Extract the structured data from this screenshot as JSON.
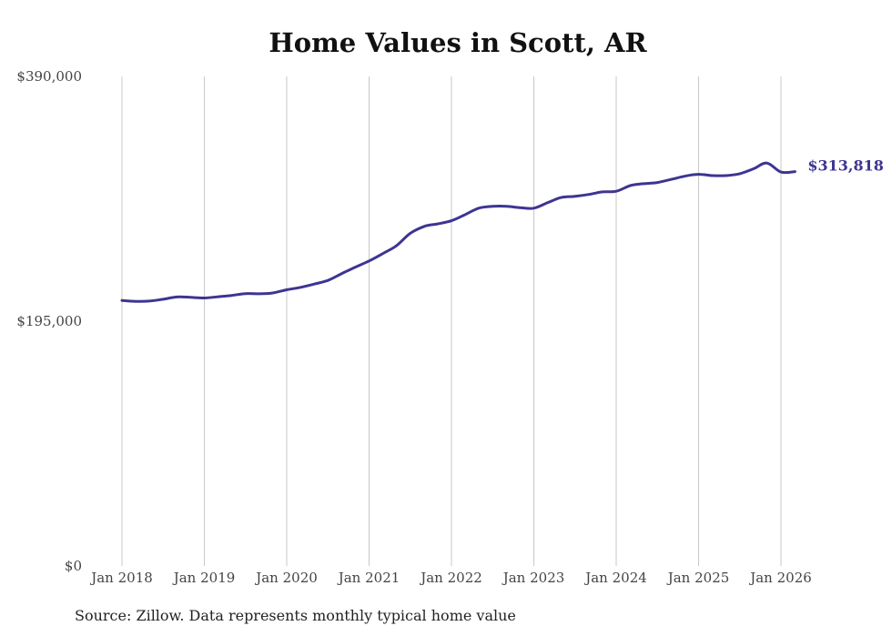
{
  "chart_data": {
    "type": "line",
    "title": "Home Values in Scott, AR",
    "xlabel": "",
    "ylabel": "",
    "x_tick_labels": [
      "Jan 2018",
      "Jan 2019",
      "Jan 2020",
      "Jan 2021",
      "Jan 2022",
      "Jan 2023",
      "Jan 2024",
      "Jan 2025",
      "Jan 2026"
    ],
    "y_tick_labels": [
      "$390,000",
      "$195,000",
      "$0"
    ],
    "y_ticks": [
      390000,
      195000,
      0
    ],
    "ylim": [
      0,
      390000
    ],
    "xlim": [
      2018.0,
      2026.0
    ],
    "grid": "vertical lines at each January",
    "series": [
      {
        "name": "Typical home value",
        "color": "#3d3591",
        "points": [
          [
            2018.0,
            211500
          ],
          [
            2018.17,
            210800
          ],
          [
            2018.33,
            211000
          ],
          [
            2018.5,
            212500
          ],
          [
            2018.67,
            214300
          ],
          [
            2018.83,
            214000
          ],
          [
            2019.0,
            213500
          ],
          [
            2019.17,
            214500
          ],
          [
            2019.33,
            215500
          ],
          [
            2019.5,
            217000
          ],
          [
            2019.67,
            216800
          ],
          [
            2019.83,
            217500
          ],
          [
            2020.0,
            220000
          ],
          [
            2020.17,
            222000
          ],
          [
            2020.33,
            224500
          ],
          [
            2020.5,
            227500
          ],
          [
            2020.67,
            233000
          ],
          [
            2020.83,
            238000
          ],
          [
            2021.0,
            243000
          ],
          [
            2021.17,
            249000
          ],
          [
            2021.33,
            255000
          ],
          [
            2021.5,
            265000
          ],
          [
            2021.67,
            270500
          ],
          [
            2021.83,
            272500
          ],
          [
            2022.0,
            275000
          ],
          [
            2022.17,
            280000
          ],
          [
            2022.33,
            285000
          ],
          [
            2022.5,
            286500
          ],
          [
            2022.67,
            286500
          ],
          [
            2022.83,
            285500
          ],
          [
            2023.0,
            285000
          ],
          [
            2023.17,
            289500
          ],
          [
            2023.33,
            293500
          ],
          [
            2023.5,
            294500
          ],
          [
            2023.67,
            296000
          ],
          [
            2023.83,
            298000
          ],
          [
            2024.0,
            298500
          ],
          [
            2024.17,
            303000
          ],
          [
            2024.33,
            304500
          ],
          [
            2024.5,
            305500
          ],
          [
            2024.67,
            308000
          ],
          [
            2024.83,
            310500
          ],
          [
            2025.0,
            312000
          ],
          [
            2025.17,
            311000
          ],
          [
            2025.33,
            311000
          ],
          [
            2025.5,
            312500
          ],
          [
            2025.67,
            316500
          ],
          [
            2025.83,
            321000
          ],
          [
            2026.0,
            313818
          ],
          [
            2026.17,
            314200
          ]
        ]
      }
    ],
    "end_label": "$313,818",
    "source": "Source: Zillow. Data represents monthly typical home value"
  }
}
